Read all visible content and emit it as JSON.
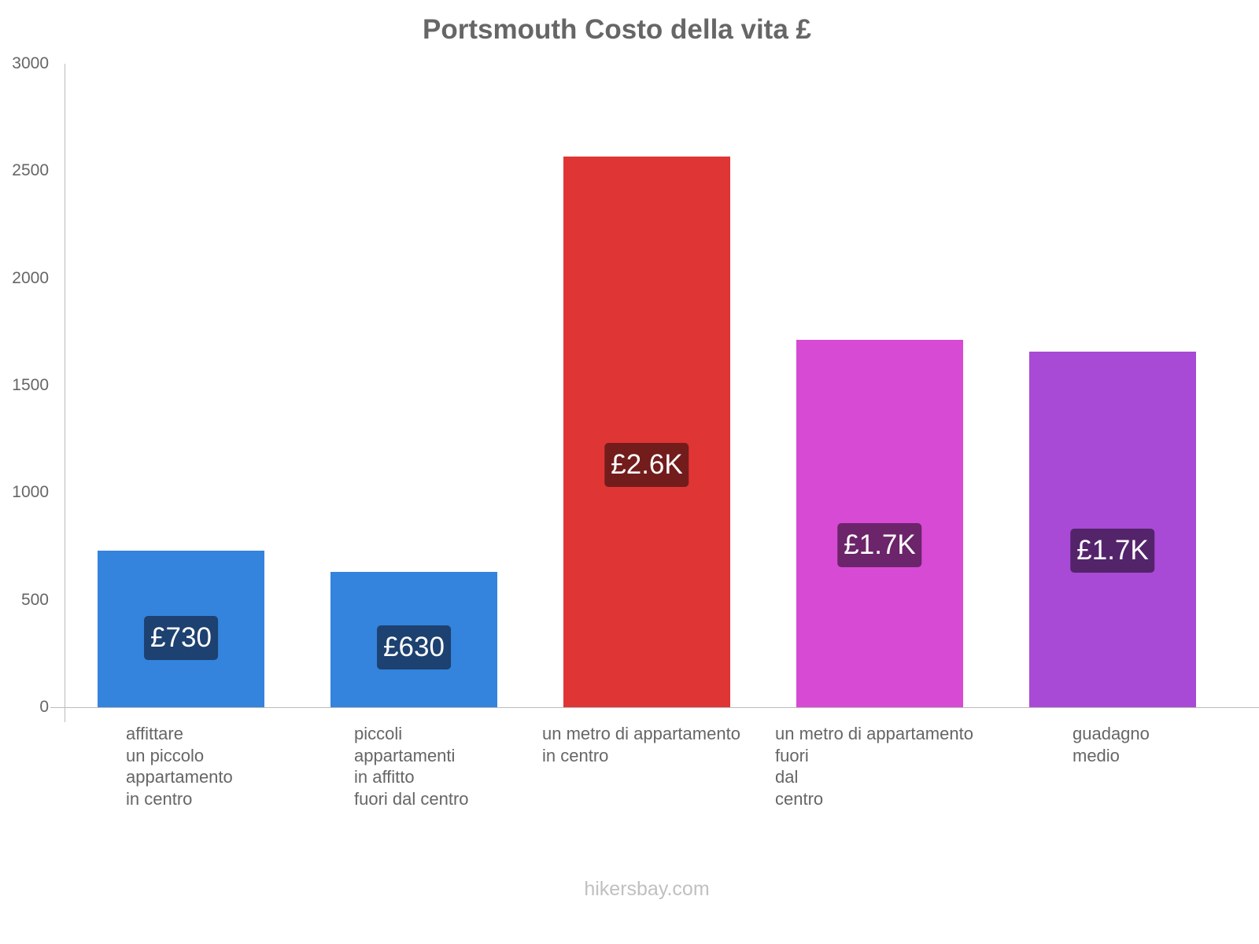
{
  "title": "Portsmouth Costo della vita £",
  "footer": "hikersbay.com",
  "y_ticks": [
    "0",
    "500",
    "1000",
    "1500",
    "2000",
    "2500",
    "3000"
  ],
  "categories": [
    "affittare\nun piccolo\nappartamento\nin centro",
    "piccoli\nappartamenti\nin affitto\nfuori dal centro",
    "un metro di appartamento\nin centro",
    "un metro di appartamento\nfuori\ndal\ncentro",
    "guadagno\nmedio"
  ],
  "bars": [
    {
      "label": "£730",
      "value": 730,
      "color": "#3483dc",
      "label_bg": "#1d4170"
    },
    {
      "label": "£630",
      "value": 630,
      "color": "#3483dc",
      "label_bg": "#1d4170"
    },
    {
      "label": "£2.6K",
      "value": 2567,
      "color": "#e03535",
      "label_bg": "#731c1c"
    },
    {
      "label": "£1.7K",
      "value": 1713,
      "color": "#d74ad4",
      "label_bg": "#6c246b"
    },
    {
      "label": "£1.7K",
      "value": 1658,
      "color": "#a84ad6",
      "label_bg": "#54246b"
    }
  ],
  "chart_data": {
    "type": "bar",
    "title": "Portsmouth Costo della vita £",
    "categories": [
      "affittare un piccolo appartamento in centro",
      "piccoli appartamenti in affitto fuori dal centro",
      "un metro di appartamento in centro",
      "un metro di appartamento fuori dal centro",
      "guadagno medio"
    ],
    "values": [
      730,
      630,
      2567,
      1713,
      1658
    ],
    "data_labels": [
      "£730",
      "£630",
      "£2.6K",
      "£1.7K",
      "£1.7K"
    ],
    "xlabel": "",
    "ylabel": "",
    "ylim": [
      0,
      3000
    ],
    "y_ticks": [
      0,
      500,
      1000,
      1500,
      2000,
      2500,
      3000
    ],
    "grid": false,
    "legend": "none",
    "colors": [
      "#3483dc",
      "#3483dc",
      "#e03535",
      "#d74ad4",
      "#a84ad6"
    ]
  }
}
